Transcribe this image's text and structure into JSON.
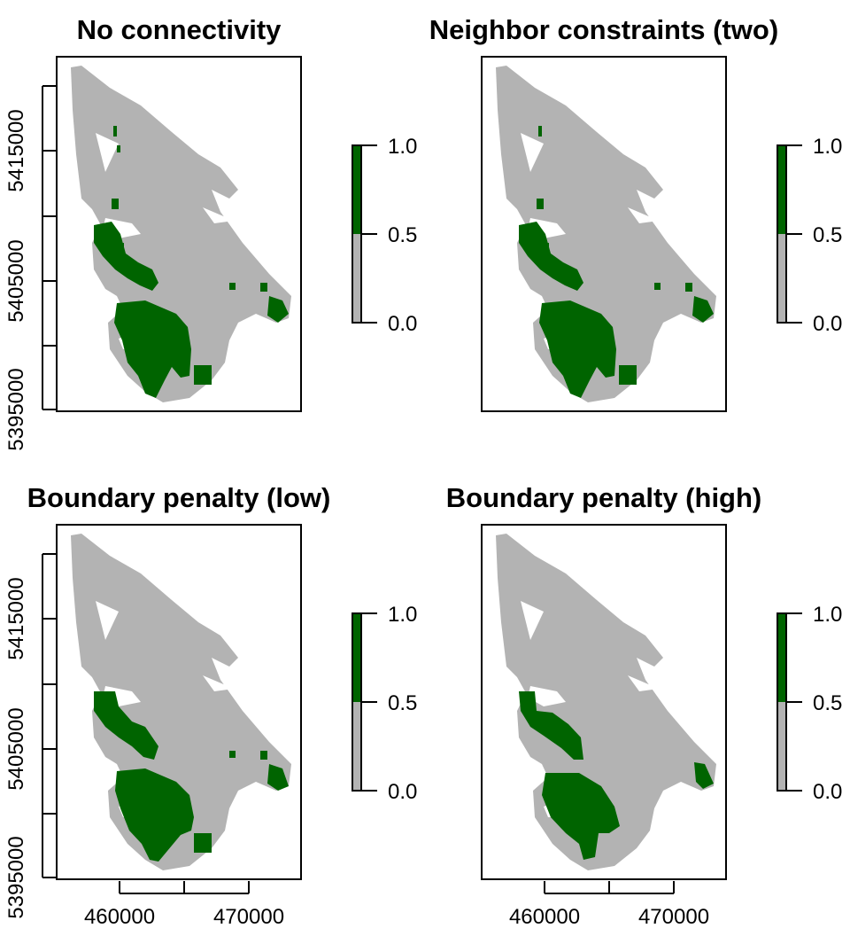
{
  "colors": {
    "background": "#ffffff",
    "not_selected": "#b3b3b3",
    "selected": "#006400",
    "axis": "#000000"
  },
  "panels": [
    {
      "title": "No connectivity",
      "show_y_axis": true,
      "show_x_axis": false,
      "variant": "none",
      "legend": {
        "ticks": [
          "1.0",
          "0.5",
          "0.0"
        ],
        "range": [
          0,
          1
        ]
      }
    },
    {
      "title": "Neighbor constraints (two)",
      "show_y_axis": false,
      "show_x_axis": false,
      "variant": "neighbor",
      "legend": {
        "ticks": [
          "1.0",
          "0.5",
          "0.0"
        ],
        "range": [
          0,
          1
        ]
      }
    },
    {
      "title": "Boundary penalty (low)",
      "show_y_axis": true,
      "show_x_axis": true,
      "variant": "low",
      "legend": {
        "ticks": [
          "1.0",
          "0.5",
          "0.0"
        ],
        "range": [
          0,
          1
        ]
      }
    },
    {
      "title": "Boundary penalty (high)",
      "show_y_axis": false,
      "show_x_axis": true,
      "variant": "high",
      "legend": {
        "ticks": [
          "1.0",
          "0.5",
          "0.0"
        ],
        "range": [
          0,
          1
        ]
      }
    }
  ],
  "axes": {
    "y_ticks": [
      "5395000",
      "5405000",
      "5415000"
    ],
    "x_ticks": [
      "460000",
      "470000"
    ]
  }
}
